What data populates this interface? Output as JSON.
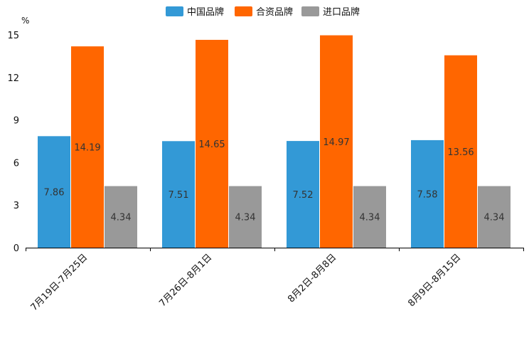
{
  "chart_data": {
    "type": "bar",
    "title": "",
    "xlabel": "",
    "ylabel": "%",
    "ylim": [
      0,
      15
    ],
    "yticks": [
      0,
      3,
      6,
      9,
      12,
      15
    ],
    "categories": [
      "7月19日-7月25日",
      "7月26日-8月1日",
      "8月2日-8月8日",
      "8月9日-8月15日"
    ],
    "series": [
      {
        "name": "中国品牌",
        "color": "#3399d6",
        "values": [
          7.86,
          7.51,
          7.52,
          7.58
        ]
      },
      {
        "name": "合资品牌",
        "color": "#ff6600",
        "values": [
          14.19,
          14.65,
          14.97,
          13.56
        ]
      },
      {
        "name": "进口品牌",
        "color": "#999999",
        "values": [
          4.34,
          4.34,
          4.34,
          4.34
        ]
      }
    ],
    "legend_position": "top-center",
    "grid": false
  }
}
